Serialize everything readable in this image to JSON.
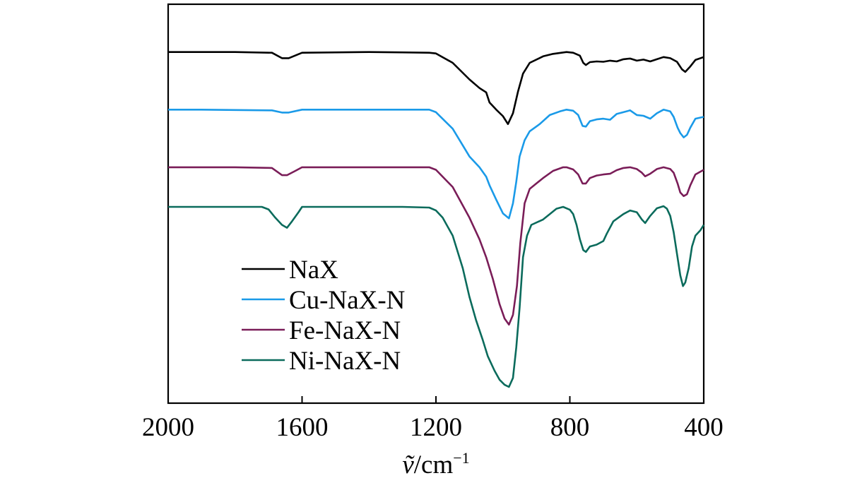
{
  "chart_data": {
    "type": "line",
    "xlabel": "ṽ/cm⁻¹",
    "xlabel_parts": {
      "symbol": "ṽ",
      "unit": "/cm",
      "exponent": "−1"
    },
    "xlim": [
      2000,
      400
    ],
    "x_reversed": true,
    "xticks": [
      2000,
      1600,
      1200,
      800,
      400
    ],
    "xtick_labels": [
      "2000",
      "1600",
      "1200",
      "800",
      "400"
    ],
    "ylim": [
      0,
      100
    ],
    "y_axis_ticks": false,
    "grid": false,
    "legend_position": "bottom-left",
    "series": [
      {
        "name": "NaX",
        "color": "#000000",
        "points": [
          [
            2000,
            93
          ],
          [
            1900,
            93
          ],
          [
            1800,
            93
          ],
          [
            1690,
            92.8
          ],
          [
            1660,
            91.3
          ],
          [
            1640,
            91.3
          ],
          [
            1600,
            92.8
          ],
          [
            1500,
            92.9
          ],
          [
            1400,
            93
          ],
          [
            1300,
            92.9
          ],
          [
            1220,
            92.8
          ],
          [
            1200,
            92.6
          ],
          [
            1150,
            90
          ],
          [
            1100,
            85.4
          ],
          [
            1070,
            83
          ],
          [
            1050,
            81.8
          ],
          [
            1040,
            79
          ],
          [
            1020,
            77
          ],
          [
            1000,
            75.2
          ],
          [
            985,
            73
          ],
          [
            970,
            76
          ],
          [
            955,
            82
          ],
          [
            940,
            87
          ],
          [
            920,
            90
          ],
          [
            880,
            91.8
          ],
          [
            850,
            92.5
          ],
          [
            810,
            93
          ],
          [
            790,
            92.8
          ],
          [
            770,
            92
          ],
          [
            760,
            90
          ],
          [
            752,
            89.4
          ],
          [
            740,
            90.2
          ],
          [
            720,
            90.4
          ],
          [
            700,
            90.3
          ],
          [
            680,
            90.6
          ],
          [
            660,
            90.4
          ],
          [
            640,
            91
          ],
          [
            620,
            91.2
          ],
          [
            600,
            90.6
          ],
          [
            580,
            90.9
          ],
          [
            560,
            90.4
          ],
          [
            540,
            91
          ],
          [
            520,
            91.6
          ],
          [
            500,
            91.3
          ],
          [
            480,
            90.3
          ],
          [
            465,
            88.2
          ],
          [
            455,
            87.5
          ],
          [
            440,
            89
          ],
          [
            425,
            90.8
          ],
          [
            400,
            91.6
          ]
        ]
      },
      {
        "name": "Cu-NaX-N",
        "color": "#1a9ae8",
        "points": [
          [
            2000,
            77
          ],
          [
            1900,
            77
          ],
          [
            1800,
            76.9
          ],
          [
            1690,
            76.8
          ],
          [
            1660,
            76.2
          ],
          [
            1640,
            76.2
          ],
          [
            1600,
            77
          ],
          [
            1500,
            77
          ],
          [
            1400,
            77
          ],
          [
            1300,
            77
          ],
          [
            1220,
            77
          ],
          [
            1200,
            76.3
          ],
          [
            1150,
            71.7
          ],
          [
            1100,
            64
          ],
          [
            1070,
            61
          ],
          [
            1050,
            58.4
          ],
          [
            1040,
            56
          ],
          [
            1020,
            52
          ],
          [
            1000,
            48.2
          ],
          [
            982,
            46.8
          ],
          [
            970,
            51
          ],
          [
            960,
            57
          ],
          [
            950,
            64
          ],
          [
            935,
            68.5
          ],
          [
            920,
            71
          ],
          [
            890,
            73
          ],
          [
            860,
            75.5
          ],
          [
            830,
            76.5
          ],
          [
            810,
            77
          ],
          [
            790,
            76.7
          ],
          [
            775,
            75.5
          ],
          [
            762,
            72.5
          ],
          [
            752,
            72.3
          ],
          [
            740,
            73.8
          ],
          [
            720,
            74.3
          ],
          [
            700,
            74.5
          ],
          [
            680,
            74.2
          ],
          [
            660,
            75.8
          ],
          [
            640,
            76.3
          ],
          [
            620,
            76.8
          ],
          [
            600,
            75.5
          ],
          [
            580,
            75.3
          ],
          [
            560,
            74.5
          ],
          [
            540,
            76
          ],
          [
            520,
            77
          ],
          [
            500,
            76.5
          ],
          [
            490,
            75
          ],
          [
            478,
            72
          ],
          [
            470,
            70.5
          ],
          [
            460,
            69.3
          ],
          [
            450,
            70
          ],
          [
            440,
            72
          ],
          [
            425,
            74.5
          ],
          [
            400,
            75
          ]
        ]
      },
      {
        "name": "Fe-NaX-N",
        "color": "#7a1d58",
        "points": [
          [
            2000,
            61
          ],
          [
            1900,
            61
          ],
          [
            1800,
            61
          ],
          [
            1690,
            60.8
          ],
          [
            1660,
            58.8
          ],
          [
            1645,
            58.8
          ],
          [
            1620,
            60
          ],
          [
            1600,
            61
          ],
          [
            1500,
            61
          ],
          [
            1400,
            61
          ],
          [
            1300,
            61
          ],
          [
            1220,
            61
          ],
          [
            1200,
            60.3
          ],
          [
            1150,
            55.5
          ],
          [
            1100,
            47
          ],
          [
            1070,
            41
          ],
          [
            1050,
            36
          ],
          [
            1030,
            30
          ],
          [
            1010,
            23
          ],
          [
            995,
            19
          ],
          [
            982,
            17.3
          ],
          [
            970,
            20
          ],
          [
            958,
            28
          ],
          [
            948,
            40
          ],
          [
            935,
            51
          ],
          [
            920,
            55
          ],
          [
            880,
            58
          ],
          [
            850,
            60
          ],
          [
            820,
            61
          ],
          [
            810,
            61
          ],
          [
            790,
            60.4
          ],
          [
            775,
            59
          ],
          [
            762,
            56.5
          ],
          [
            752,
            56.5
          ],
          [
            740,
            58
          ],
          [
            720,
            58.7
          ],
          [
            700,
            59
          ],
          [
            680,
            59.2
          ],
          [
            660,
            60.2
          ],
          [
            640,
            60.8
          ],
          [
            620,
            61
          ],
          [
            600,
            60.5
          ],
          [
            585,
            59.5
          ],
          [
            575,
            58.5
          ],
          [
            560,
            59.2
          ],
          [
            540,
            60.5
          ],
          [
            520,
            61
          ],
          [
            500,
            60.5
          ],
          [
            490,
            59.5
          ],
          [
            478,
            56.5
          ],
          [
            470,
            54
          ],
          [
            460,
            53
          ],
          [
            450,
            53.5
          ],
          [
            440,
            56
          ],
          [
            425,
            59
          ],
          [
            400,
            60.3
          ]
        ]
      },
      {
        "name": "Ni-NaX-N",
        "color": "#0b6b5c",
        "points": [
          [
            2000,
            50
          ],
          [
            1900,
            50
          ],
          [
            1800,
            50
          ],
          [
            1720,
            50
          ],
          [
            1700,
            49.3
          ],
          [
            1680,
            47
          ],
          [
            1660,
            45
          ],
          [
            1645,
            44.2
          ],
          [
            1630,
            46
          ],
          [
            1610,
            48.6
          ],
          [
            1600,
            50
          ],
          [
            1500,
            50
          ],
          [
            1400,
            50
          ],
          [
            1300,
            50
          ],
          [
            1220,
            49.8
          ],
          [
            1200,
            49
          ],
          [
            1180,
            47
          ],
          [
            1150,
            42
          ],
          [
            1120,
            33
          ],
          [
            1100,
            25
          ],
          [
            1080,
            18.5
          ],
          [
            1060,
            13
          ],
          [
            1045,
            8.5
          ],
          [
            1025,
            4.5
          ],
          [
            1010,
            2
          ],
          [
            995,
            0.6
          ],
          [
            982,
            0
          ],
          [
            970,
            2.5
          ],
          [
            960,
            11
          ],
          [
            950,
            22
          ],
          [
            940,
            36
          ],
          [
            928,
            42
          ],
          [
            915,
            45
          ],
          [
            880,
            46.5
          ],
          [
            860,
            48
          ],
          [
            840,
            49.5
          ],
          [
            820,
            50
          ],
          [
            800,
            49.2
          ],
          [
            790,
            48
          ],
          [
            780,
            45
          ],
          [
            770,
            41
          ],
          [
            760,
            38
          ],
          [
            752,
            37.5
          ],
          [
            740,
            39
          ],
          [
            720,
            39.5
          ],
          [
            700,
            40.5
          ],
          [
            690,
            42.5
          ],
          [
            670,
            46
          ],
          [
            640,
            48
          ],
          [
            620,
            49
          ],
          [
            600,
            48.5
          ],
          [
            585,
            46.5
          ],
          [
            575,
            45.5
          ],
          [
            560,
            47.5
          ],
          [
            540,
            49.6
          ],
          [
            520,
            50.2
          ],
          [
            510,
            49.5
          ],
          [
            500,
            47.5
          ],
          [
            490,
            43
          ],
          [
            480,
            37
          ],
          [
            470,
            31
          ],
          [
            462,
            28
          ],
          [
            455,
            29
          ],
          [
            445,
            33
          ],
          [
            435,
            39
          ],
          [
            425,
            42
          ],
          [
            410,
            43.5
          ],
          [
            400,
            45
          ]
        ]
      }
    ]
  }
}
